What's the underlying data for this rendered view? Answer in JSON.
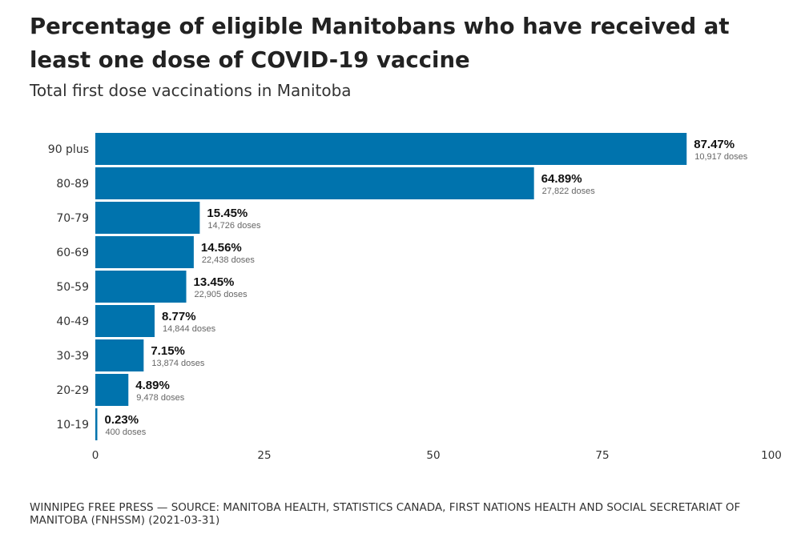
{
  "chart_data": {
    "type": "bar",
    "orientation": "horizontal",
    "title": "Percentage of eligible Manitobans who have received at least one dose of COVID-19 vaccine",
    "subtitle": "Total first dose vaccinations in Manitoba",
    "categories": [
      "90 plus",
      "80-89",
      "70-79",
      "60-69",
      "50-59",
      "40-49",
      "30-39",
      "20-29",
      "10-19"
    ],
    "values": [
      87.47,
      64.89,
      15.45,
      14.56,
      13.45,
      8.77,
      7.15,
      4.89,
      0.23
    ],
    "value_labels": [
      "87.47%",
      "64.89%",
      "15.45%",
      "14.56%",
      "13.45%",
      "8.77%",
      "7.15%",
      "4.89%",
      "0.23%"
    ],
    "dose_labels": [
      "10,917 doses",
      "27,822 doses",
      "14,726 doses",
      "22,438 doses",
      "22,905 doses",
      "14,844 doses",
      "13,874 doses",
      "9,478 doses",
      "400 doses"
    ],
    "xlabel": "",
    "ylabel": "",
    "xlim": [
      0,
      100
    ],
    "xticks": [
      0,
      25,
      50,
      75,
      100
    ],
    "grid": false,
    "bar_color": "#0073ad",
    "footer": "WINNIPEG FREE PRESS — SOURCE: MANITOBA HEALTH, STATISTICS CANADA, FIRST NATIONS HEALTH AND SOCIAL SECRETARIAT OF MANITOBA (FNHSSM) (2021-03-31)"
  }
}
